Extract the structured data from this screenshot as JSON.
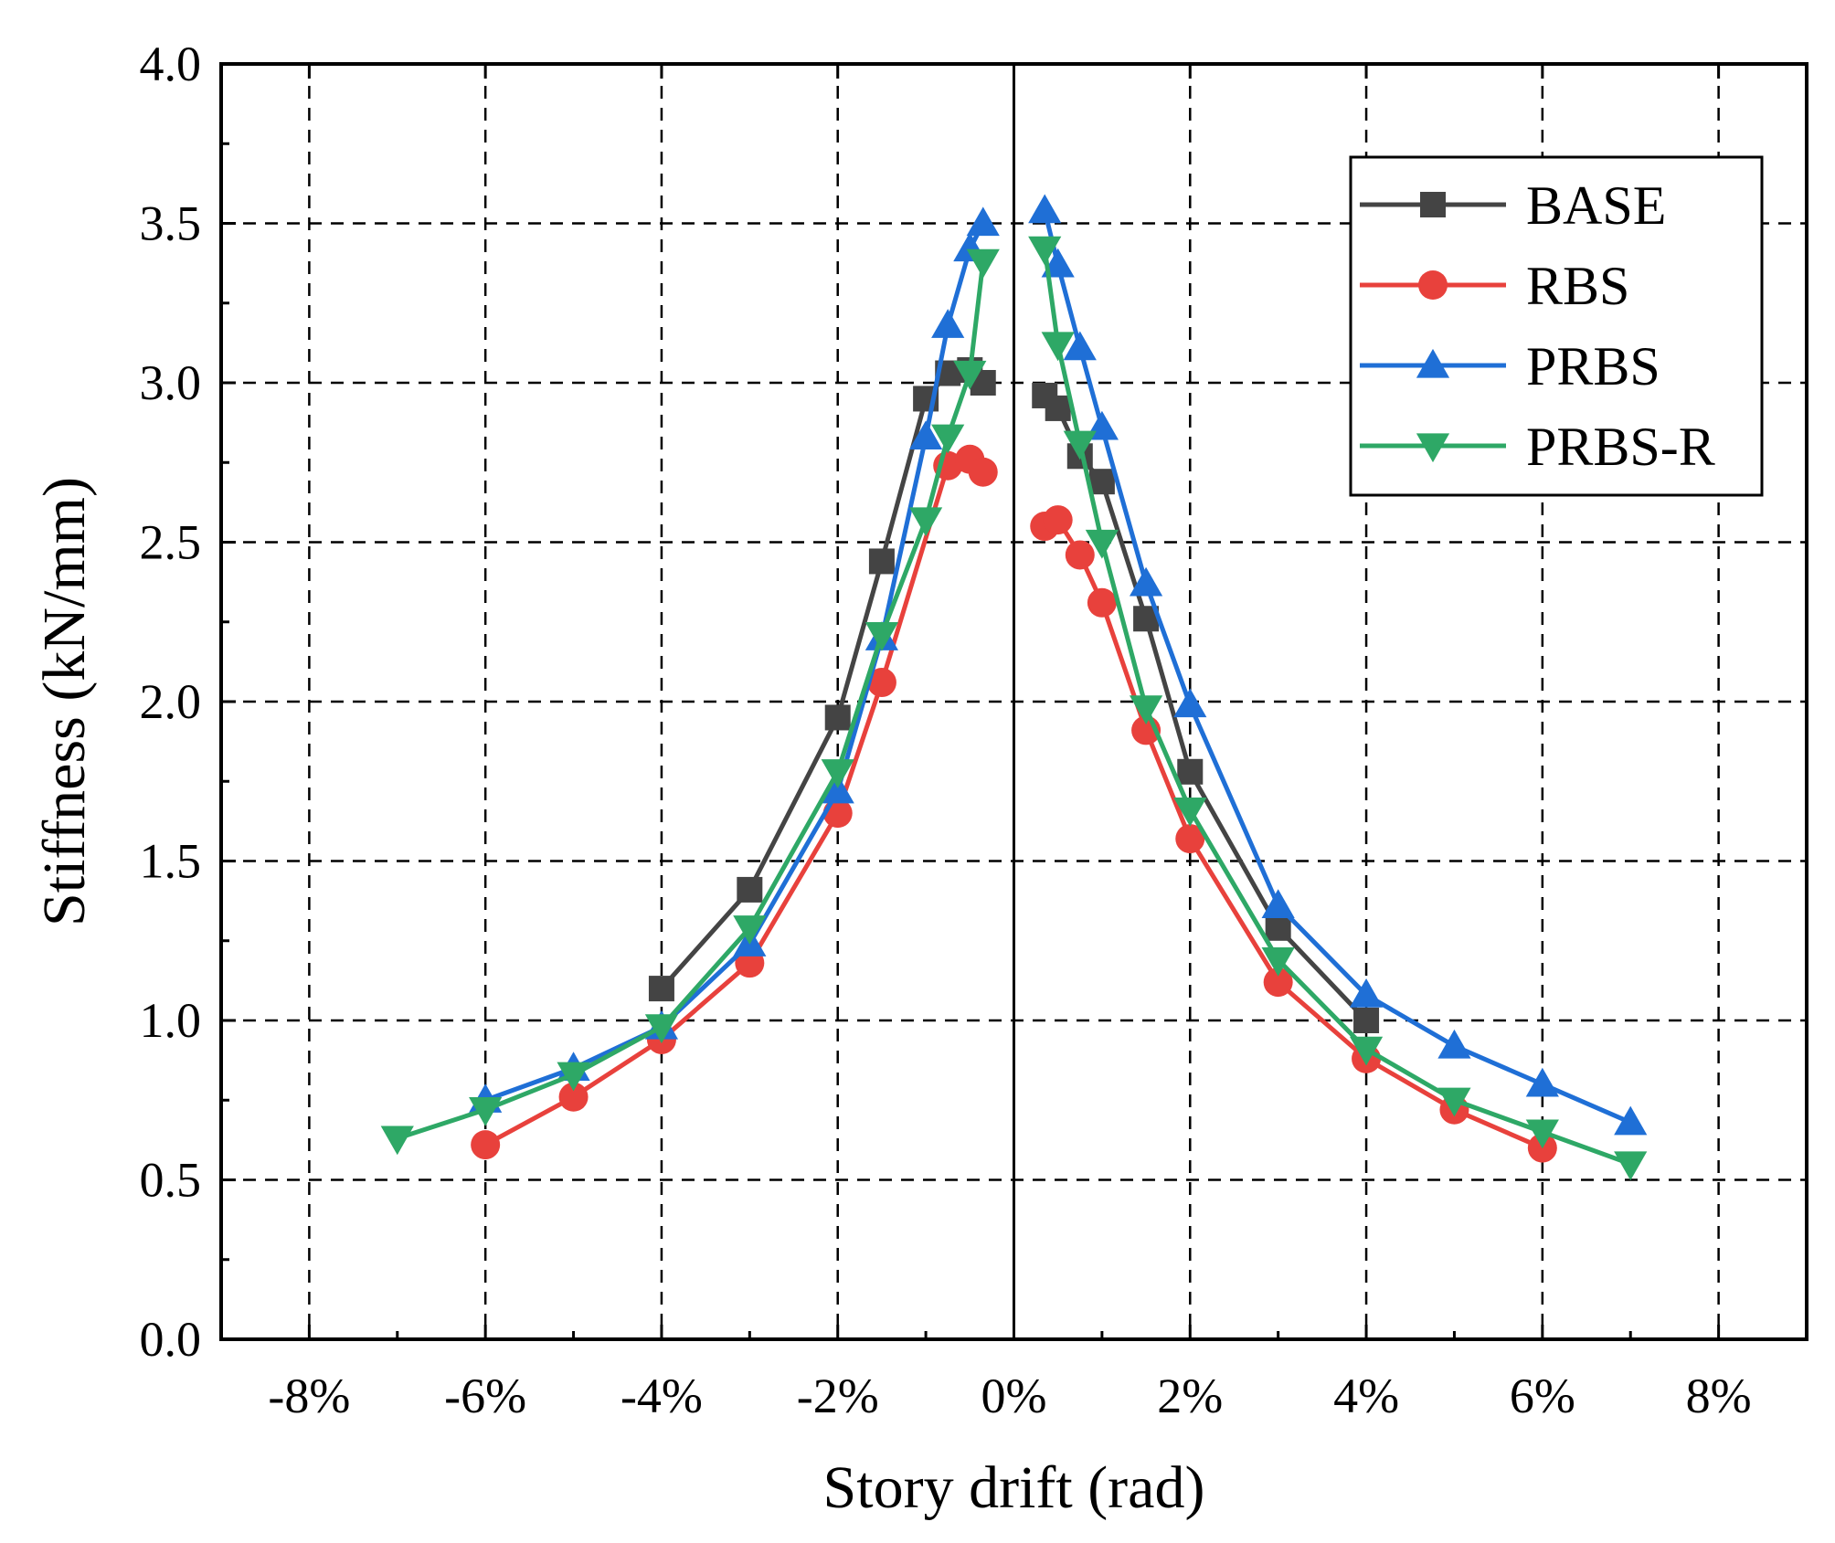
{
  "chart_data": {
    "type": "line",
    "title": "",
    "xlabel": "Story drift (rad)",
    "ylabel": "Stiffness (kN/mm)",
    "xlim": [
      -0.09,
      0.09
    ],
    "ylim": [
      0.0,
      4.0
    ],
    "grid": true,
    "legend_position": "top-right",
    "x_ticks": [
      {
        "value": -0.08,
        "label": "-8%"
      },
      {
        "value": -0.06,
        "label": "-6%"
      },
      {
        "value": -0.04,
        "label": "-4%"
      },
      {
        "value": -0.02,
        "label": "-2%"
      },
      {
        "value": 0.0,
        "label": "0%"
      },
      {
        "value": 0.02,
        "label": "2%"
      },
      {
        "value": 0.04,
        "label": "4%"
      },
      {
        "value": 0.06,
        "label": "6%"
      },
      {
        "value": 0.08,
        "label": "8%"
      }
    ],
    "y_ticks": [
      {
        "value": 0.0,
        "label": "0.0"
      },
      {
        "value": 0.5,
        "label": "0.5"
      },
      {
        "value": 1.0,
        "label": "1.0"
      },
      {
        "value": 1.5,
        "label": "1.5"
      },
      {
        "value": 2.0,
        "label": "2.0"
      },
      {
        "value": 2.5,
        "label": "2.5"
      },
      {
        "value": 3.0,
        "label": "3.0"
      },
      {
        "value": 3.5,
        "label": "3.5"
      },
      {
        "value": 4.0,
        "label": "4.0"
      }
    ],
    "series": [
      {
        "name": "BASE",
        "color": "#444444",
        "marker": "square",
        "branches": [
          [
            [
              -0.04,
              1.1
            ],
            [
              -0.03,
              1.41
            ],
            [
              -0.02,
              1.95
            ],
            [
              -0.015,
              2.44
            ],
            [
              -0.01,
              2.95
            ],
            [
              -0.0075,
              3.03
            ],
            [
              -0.005,
              3.04
            ],
            [
              -0.0035,
              3.0
            ]
          ],
          [
            [
              0.0035,
              2.96
            ],
            [
              0.005,
              2.92
            ],
            [
              0.0075,
              2.77
            ],
            [
              0.01,
              2.69
            ],
            [
              0.015,
              2.26
            ],
            [
              0.02,
              1.78
            ],
            [
              0.03,
              1.29
            ],
            [
              0.04,
              1.0
            ]
          ]
        ]
      },
      {
        "name": "RBS",
        "color": "#e8413c",
        "marker": "circle",
        "branches": [
          [
            [
              -0.06,
              0.61
            ],
            [
              -0.05,
              0.76
            ],
            [
              -0.04,
              0.94
            ],
            [
              -0.03,
              1.18
            ],
            [
              -0.02,
              1.65
            ],
            [
              -0.015,
              2.06
            ],
            [
              -0.0075,
              2.74
            ],
            [
              -0.005,
              2.76
            ],
            [
              -0.0035,
              2.72
            ]
          ],
          [
            [
              0.0035,
              2.55
            ],
            [
              0.005,
              2.57
            ],
            [
              0.0075,
              2.46
            ],
            [
              0.01,
              2.31
            ],
            [
              0.015,
              1.91
            ],
            [
              0.02,
              1.57
            ],
            [
              0.03,
              1.12
            ],
            [
              0.04,
              0.88
            ],
            [
              0.05,
              0.72
            ],
            [
              0.06,
              0.6
            ]
          ]
        ]
      },
      {
        "name": "PRBS",
        "color": "#1f6fd6",
        "marker": "triangle-up",
        "branches": [
          [
            [
              -0.06,
              0.75
            ],
            [
              -0.05,
              0.85
            ],
            [
              -0.04,
              0.98
            ],
            [
              -0.03,
              1.24
            ],
            [
              -0.02,
              1.72
            ],
            [
              -0.015,
              2.2
            ],
            [
              -0.01,
              2.83
            ],
            [
              -0.0075,
              3.18
            ],
            [
              -0.005,
              3.42
            ],
            [
              -0.0035,
              3.5
            ]
          ],
          [
            [
              0.0035,
              3.54
            ],
            [
              0.005,
              3.37
            ],
            [
              0.0075,
              3.11
            ],
            [
              0.01,
              2.86
            ],
            [
              0.015,
              2.37
            ],
            [
              0.02,
              1.99
            ],
            [
              0.03,
              1.36
            ],
            [
              0.04,
              1.08
            ],
            [
              0.05,
              0.92
            ],
            [
              0.06,
              0.8
            ],
            [
              0.07,
              0.68
            ]
          ]
        ]
      },
      {
        "name": "PRBS-R",
        "color": "#2ea866",
        "marker": "triangle-down",
        "branches": [
          [
            [
              -0.07,
              0.63
            ],
            [
              -0.06,
              0.72
            ],
            [
              -0.05,
              0.83
            ],
            [
              -0.04,
              0.98
            ],
            [
              -0.03,
              1.29
            ],
            [
              -0.02,
              1.78
            ],
            [
              -0.015,
              2.21
            ],
            [
              -0.01,
              2.57
            ],
            [
              -0.0075,
              2.83
            ],
            [
              -0.005,
              3.03
            ],
            [
              -0.0035,
              3.38
            ]
          ],
          [
            [
              0.0035,
              3.42
            ],
            [
              0.005,
              3.12
            ],
            [
              0.0075,
              2.81
            ],
            [
              0.01,
              2.5
            ],
            [
              0.015,
              1.98
            ],
            [
              0.02,
              1.66
            ],
            [
              0.03,
              1.19
            ],
            [
              0.04,
              0.91
            ],
            [
              0.05,
              0.75
            ],
            [
              0.06,
              0.65
            ],
            [
              0.07,
              0.55
            ]
          ]
        ]
      }
    ]
  }
}
